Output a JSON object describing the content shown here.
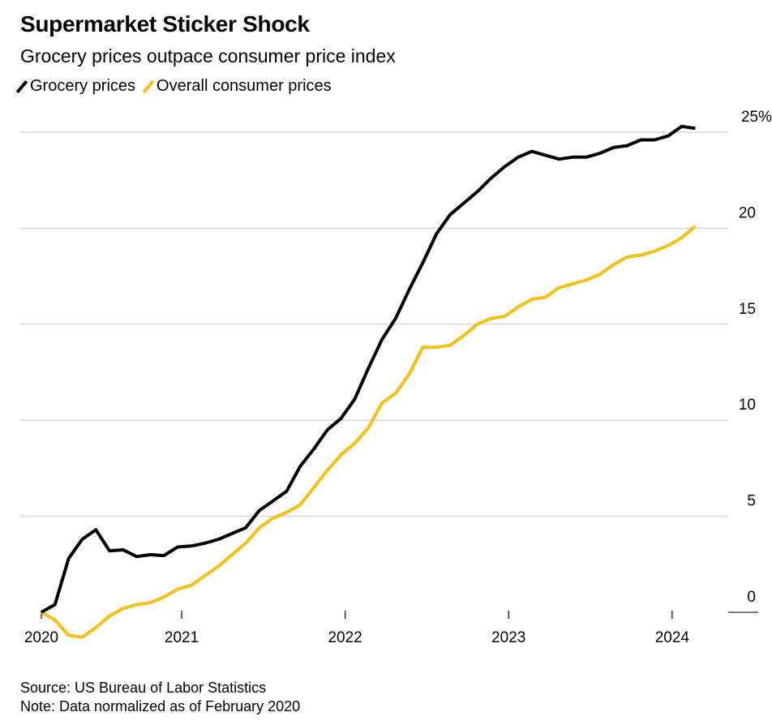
{
  "title": "Supermarket Sticker Shock",
  "subtitle": "Grocery prices outpace consumer price index",
  "source": "Source: US Bureau of Labor Statistics",
  "note": "Note: Data normalized as of February 2020",
  "chart_data": {
    "type": "line",
    "title": "Supermarket Sticker Shock",
    "subtitle": "Grocery prices outpace consumer price index",
    "xlabel": "",
    "ylabel": "",
    "x_start": "Feb 2020",
    "x_unit": "month",
    "x_ticks": [
      {
        "label": "2020",
        "month": 0
      },
      {
        "label": "2021",
        "month": 10.3
      },
      {
        "label": "2022",
        "month": 22.3
      },
      {
        "label": "2023",
        "month": 34.3
      },
      {
        "label": "2024",
        "month": 46.3
      }
    ],
    "y_ticks": [
      "0",
      "5",
      "10",
      "15",
      "20",
      "25%"
    ],
    "y_tick_values": [
      0,
      5,
      10,
      15,
      20,
      25
    ],
    "ylim": [
      -1.5,
      25
    ],
    "grid": true,
    "legend_placement": "top-left",
    "series": [
      {
        "name": "Grocery prices",
        "color": "#000000",
        "values": [
          0,
          0.4,
          2.8,
          3.8,
          4.3,
          3.2,
          3.25,
          2.9,
          3.0,
          2.95,
          3.4,
          3.45,
          3.6,
          3.8,
          4.1,
          4.4,
          5.3,
          5.8,
          6.3,
          7.6,
          8.5,
          9.5,
          10.1,
          11.1,
          12.7,
          14.2,
          15.3,
          16.8,
          18.2,
          19.7,
          20.7,
          21.3,
          21.9,
          22.6,
          23.2,
          23.7,
          24.0,
          23.8,
          23.6,
          23.7,
          23.7,
          23.9,
          24.2,
          24.3,
          24.6,
          24.6,
          24.8,
          25.3,
          25.2
        ]
      },
      {
        "name": "Overall consumer prices",
        "color": "#F5C01A",
        "values": [
          0,
          -0.4,
          -1.2,
          -1.3,
          -0.8,
          -0.2,
          0.2,
          0.4,
          0.5,
          0.8,
          1.2,
          1.4,
          1.9,
          2.4,
          3.0,
          3.6,
          4.4,
          4.9,
          5.2,
          5.6,
          6.5,
          7.4,
          8.2,
          8.8,
          9.6,
          10.9,
          11.4,
          12.4,
          13.8,
          13.8,
          13.9,
          14.4,
          15.0,
          15.3,
          15.4,
          15.9,
          16.3,
          16.4,
          16.9,
          17.1,
          17.3,
          17.6,
          18.1,
          18.5,
          18.6,
          18.8,
          19.1,
          19.5,
          20.1
        ]
      }
    ]
  }
}
